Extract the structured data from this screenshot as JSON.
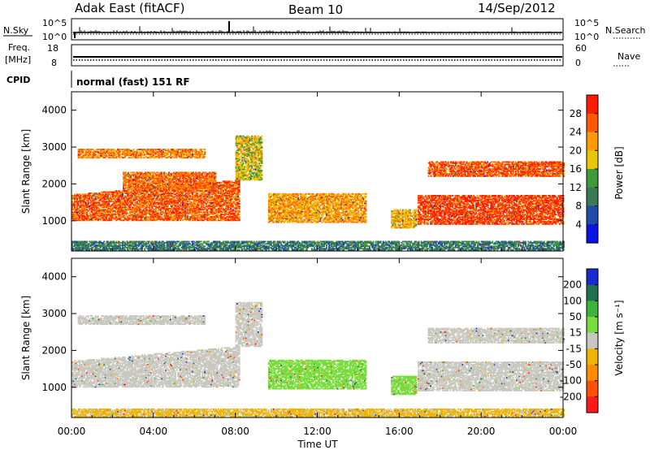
{
  "header": {
    "site": "Adak East (fitACF)",
    "beam": "Beam 10",
    "date": "14/Sep/2012"
  },
  "strip_panels": {
    "nsky": {
      "left_label": "N.Sky",
      "right_label": "N.Search",
      "left_ticks": [
        "10^5",
        "10^0"
      ],
      "right_ticks": [
        "10^5",
        "10^0"
      ]
    },
    "freq": {
      "left_label_1": "Freq.",
      "left_label_2": "[MHz]",
      "right_label": "Nave",
      "left_ticks": [
        "18",
        "8"
      ],
      "right_ticks": [
        "60",
        "0"
      ]
    },
    "cpid": {
      "label": "CPID",
      "text": "normal (fast) 151 RF"
    }
  },
  "colors": {
    "power_scale": [
      "#0a14e6",
      "#1e4aa8",
      "#3a7a56",
      "#3f9a3a",
      "#e7c800",
      "#ff9a00",
      "#ff5a00",
      "#ff1a00"
    ],
    "velocity_scale": [
      "#1a2ad0",
      "#1e7050",
      "#3cb43c",
      "#78dc3c",
      "#c8c8c0",
      "#f0b400",
      "#ff8c00",
      "#ff5000",
      "#ff1a1a"
    ]
  },
  "chart_data": [
    {
      "type": "heatmap",
      "quantity": "power",
      "ylabel": "Slant Range [km]",
      "xlabel": "",
      "x_ticks": [
        "00:00",
        "04:00",
        "08:00",
        "12:00",
        "16:00",
        "20:00",
        "00:00"
      ],
      "xlim_hours": [
        0,
        24
      ],
      "y_ticks": [
        1000,
        2000,
        3000,
        4000
      ],
      "ylim": [
        180,
        4500
      ],
      "colorbar_label": "Power [dB]",
      "colorbar_ticks": [
        4,
        8,
        12,
        16,
        20,
        24,
        28
      ],
      "colorbar_range": [
        0,
        32
      ],
      "regions": [
        {
          "t0": 0.0,
          "t1": 8.2,
          "r0": 1000,
          "r1": 1700,
          "r1_end": 2100,
          "value": 26
        },
        {
          "t0": 0.3,
          "t1": 6.5,
          "r0": 2700,
          "r1": 2950,
          "value": 24
        },
        {
          "t0": 2.5,
          "t1": 7.0,
          "r0": 1850,
          "r1": 2300,
          "value": 25
        },
        {
          "t0": 8.0,
          "t1": 9.3,
          "r0": 2100,
          "r1": 3300,
          "value": 18
        },
        {
          "t0": 9.6,
          "t1": 14.4,
          "r0": 950,
          "r1": 1750,
          "value": 22
        },
        {
          "t0": 15.6,
          "t1": 16.8,
          "r0": 800,
          "r1": 1300,
          "value": 20
        },
        {
          "t0": 16.9,
          "t1": 24.0,
          "r0": 900,
          "r1": 1700,
          "value": 28
        },
        {
          "t0": 17.4,
          "t1": 24.0,
          "r0": 2200,
          "r1": 2600,
          "value": 27
        },
        {
          "t0": 0.0,
          "t1": 24.0,
          "r0": 200,
          "r1": 450,
          "value": 10
        }
      ]
    },
    {
      "type": "heatmap",
      "quantity": "velocity",
      "ylabel": "Slant Range [km]",
      "xlabel": "Time UT",
      "x_ticks": [
        "00:00",
        "04:00",
        "08:00",
        "12:00",
        "16:00",
        "20:00",
        "00:00"
      ],
      "xlim_hours": [
        0,
        24
      ],
      "y_ticks": [
        1000,
        2000,
        3000,
        4000
      ],
      "ylim": [
        180,
        4500
      ],
      "colorbar_label": "Velocity [m s⁻¹]",
      "colorbar_ticks": [
        200,
        100,
        50,
        15,
        -15,
        -50,
        -100,
        -200
      ],
      "colorbar_range": [
        -250,
        250
      ],
      "regions": [
        {
          "t0": 0.0,
          "t1": 8.2,
          "r0": 1000,
          "r1": 1700,
          "r1_end": 2100,
          "value": 0
        },
        {
          "t0": 0.3,
          "t1": 6.5,
          "r0": 2700,
          "r1": 2950,
          "value": 0
        },
        {
          "t0": 8.0,
          "t1": 9.3,
          "r0": 2100,
          "r1": 3300,
          "value": 0
        },
        {
          "t0": 9.6,
          "t1": 14.4,
          "r0": 950,
          "r1": 1750,
          "value": 60
        },
        {
          "t0": 15.6,
          "t1": 16.8,
          "r0": 800,
          "r1": 1300,
          "value": 60
        },
        {
          "t0": 16.9,
          "t1": 24.0,
          "r0": 900,
          "r1": 1700,
          "value": 0
        },
        {
          "t0": 17.4,
          "t1": 24.0,
          "r0": 2200,
          "r1": 2600,
          "value": 0
        },
        {
          "t0": 0.0,
          "t1": 24.0,
          "r0": 200,
          "r1": 400,
          "value": -40
        }
      ]
    }
  ]
}
